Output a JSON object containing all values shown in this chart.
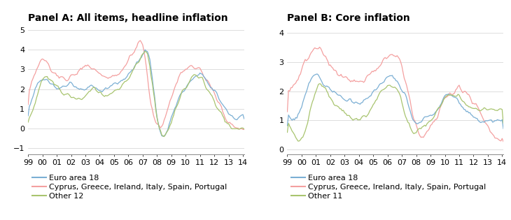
{
  "panel_a_title": "Panel A: All items, headline inflation",
  "panel_b_title": "Panel B: Core inflation",
  "legend_labels": [
    "Euro area 18",
    "Cyprus, Greece, Ireland, Italy, Spain, Portugal",
    "Other 12"
  ],
  "legend_labels_b": [
    "Euro area 18",
    "Cyprus, Greece, Ireland, Italy, Spain, Portugal",
    "Other 11"
  ],
  "color_blue": "#7BAFD4",
  "color_pink": "#F4A0A0",
  "color_green": "#A8C46F",
  "panel_a_ylim": [
    -1.3,
    5.3
  ],
  "panel_b_ylim": [
    -0.15,
    4.3
  ],
  "panel_a_yticks": [
    -1,
    0,
    1,
    2,
    3,
    4,
    5
  ],
  "panel_b_yticks": [
    0,
    1,
    2,
    3,
    4
  ],
  "xtick_labels": [
    "99",
    "00",
    "01",
    "02",
    "03",
    "04",
    "05",
    "06",
    "07",
    "08",
    "09",
    "10",
    "11",
    "12",
    "13",
    "14"
  ],
  "title_fontsize": 10,
  "tick_fontsize": 8,
  "legend_fontsize": 8
}
